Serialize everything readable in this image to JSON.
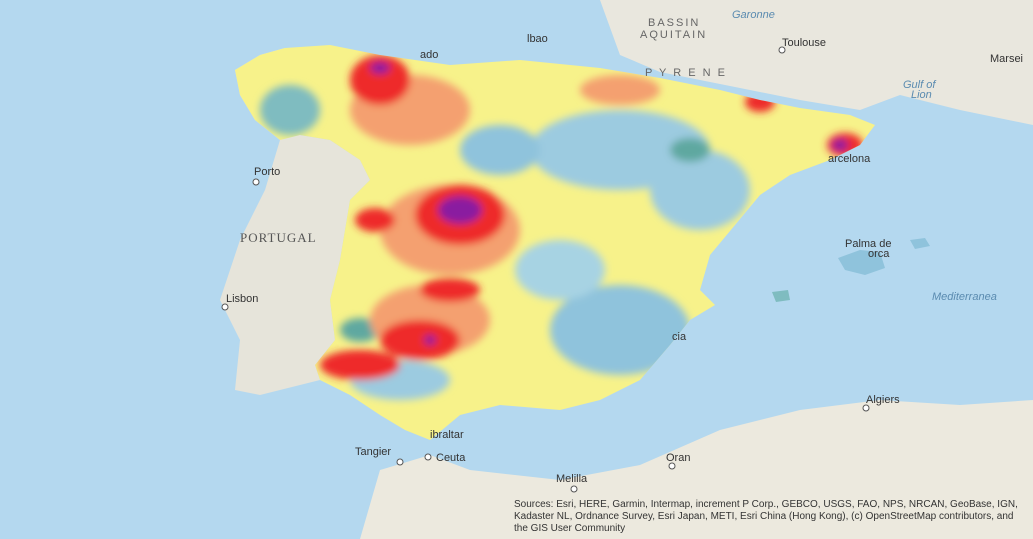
{
  "labels": {
    "bassin": "BASSIN",
    "aquitain": "AQUITAIN",
    "garonne": "Garonne",
    "toulouse": "Toulouse",
    "marseille": "Marsei",
    "gulf": "Gulf of",
    "lion": "Lion",
    "pyrenees": "P Y R E N E",
    "porto": "Porto",
    "portugal": "PORTUGAL",
    "lisbon": "Lisbon",
    "barcelona": "arcelona",
    "palma": "Palma de",
    "mallorca": "orca",
    "mediterranean": "Mediterranea",
    "algiers": "Algiers",
    "oran": "Oran",
    "melilla": "Melilla",
    "tangier": "Tangier",
    "ceuta": "Ceuta",
    "gibraltar": "ibraltar",
    "valencia": "cia",
    "oviedo": "ado",
    "bilbao": "lbao"
  },
  "attribution": "Sources: Esri, HERE, Garmin, Intermap, increment P Corp., GEBCO, USGS, FAO, NPS, NRCAN, GeoBase, IGN, Kadaster NL, Ordnance Survey, Esri Japan, METI, Esri China (Hong Kong), (c) OpenStreetMap contributors, and the GIS User Community"
}
